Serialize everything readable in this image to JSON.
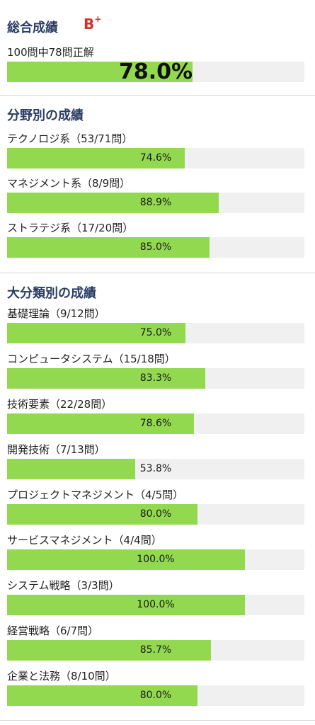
{
  "overall": {
    "title": "総合成績",
    "grade": "B",
    "grade_mark": "+",
    "summary": "100問中78問正解",
    "percent_text": "78.0%",
    "percent": 78.0
  },
  "by_field": {
    "title": "分野別の成績",
    "items": [
      {
        "label": "テクノロジ系（53/71問）",
        "percent_text": "74.6%",
        "percent": 74.6
      },
      {
        "label": "マネジメント系（8/9問）",
        "percent_text": "88.9%",
        "percent": 88.9
      },
      {
        "label": "ストラテジ系（17/20問）",
        "percent_text": "85.0%",
        "percent": 85.0
      }
    ]
  },
  "by_category": {
    "title": "大分類別の成績",
    "items": [
      {
        "label": "基礎理論（9/12問）",
        "percent_text": "75.0%",
        "percent": 75.0
      },
      {
        "label": "コンピュータシステム（15/18問）",
        "percent_text": "83.3%",
        "percent": 83.3
      },
      {
        "label": "技術要素（22/28問）",
        "percent_text": "78.6%",
        "percent": 78.6
      },
      {
        "label": "開発技術（7/13問）",
        "percent_text": "53.8%",
        "percent": 53.8
      },
      {
        "label": "プロジェクトマネジメント（4/5問）",
        "percent_text": "80.0%",
        "percent": 80.0
      },
      {
        "label": "サービスマネジメント（4/4問）",
        "percent_text": "100.0%",
        "percent": 100.0
      },
      {
        "label": "システム戦略（3/3問）",
        "percent_text": "100.0%",
        "percent": 100.0
      },
      {
        "label": "経営戦略（6/7問）",
        "percent_text": "85.7%",
        "percent": 85.7
      },
      {
        "label": "企業と法務（8/10問）",
        "percent_text": "80.0%",
        "percent": 80.0
      }
    ]
  },
  "colors": {
    "bar_fill": "#92d94f",
    "bar_track": "#f0f0f0",
    "section_title": "#2c3e66",
    "grade": "#d6302b"
  }
}
